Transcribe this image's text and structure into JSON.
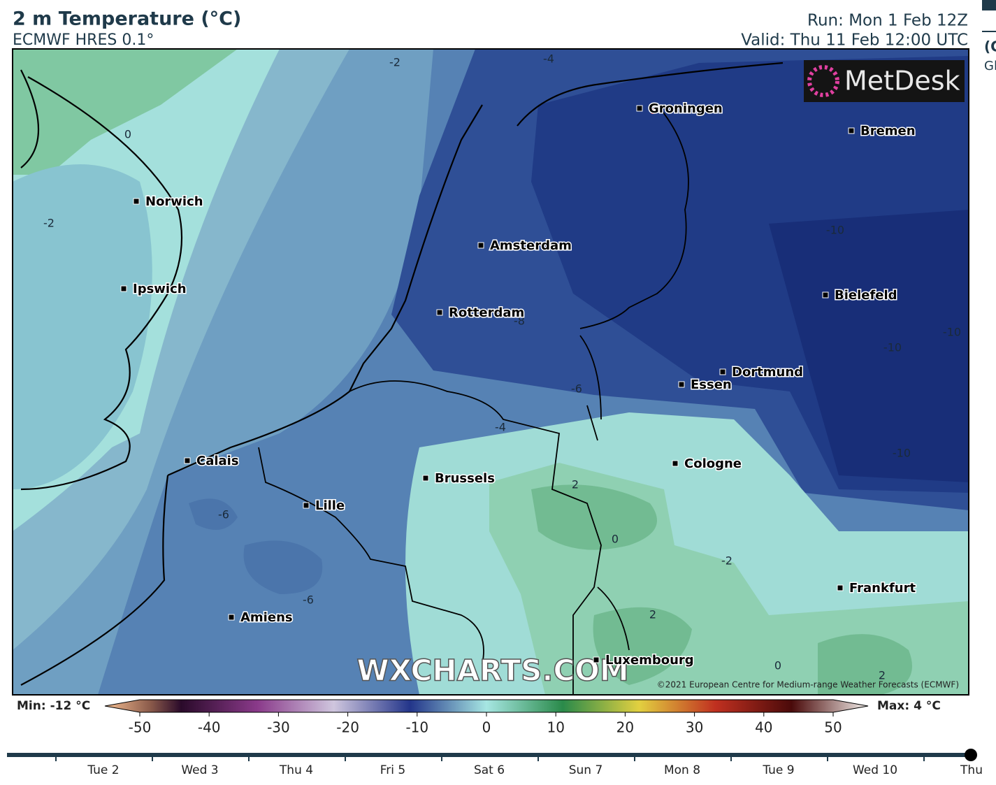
{
  "header": {
    "title": "2 m Temperature (°C)",
    "subtitle": "ECMWF HRES 0.1°",
    "run": "Run: Mon 1 Feb 12Z",
    "valid": "Valid: Thu 11 Feb 12:00 UTC"
  },
  "map": {
    "logo": "MetDesk",
    "watermark": "WXCHARTS.COM",
    "copyright": "©2021 European Centre for Medium-range Weather Forecasts (ECMWF)",
    "cities": [
      "Groningen",
      "Bremen",
      "Norwich",
      "Amsterdam",
      "Ipswich",
      "Rotterdam",
      "Bielefeld",
      "Dortmund",
      "Essen",
      "Cologne",
      "Calais",
      "Brussels",
      "Lille",
      "Frankfurt",
      "Amiens",
      "Luxembourg"
    ],
    "contour_labels": [
      "-2",
      "-4",
      "0",
      "-2",
      "-10",
      "-8",
      "-10",
      "-10",
      "-6",
      "-4",
      "-10",
      "2",
      "-6",
      "0",
      "-2",
      "-6",
      "2",
      "0",
      "2"
    ]
  },
  "colorbar": {
    "min_label": "Min: -12 °C",
    "max_label": "Max: 4 °C",
    "ticks": [
      -50,
      -40,
      -30,
      -20,
      -10,
      0,
      10,
      20,
      30,
      40,
      50
    ]
  },
  "timeline": {
    "days": [
      "Tue 2",
      "Wed 3",
      "Thu 4",
      "Fri 5",
      "Sat 6",
      "Sun 7",
      "Mon 8",
      "Tue 9",
      "Wed 10",
      "Thu"
    ]
  },
  "side_panel": {
    "lines": [
      "(C",
      "Gl"
    ]
  }
}
